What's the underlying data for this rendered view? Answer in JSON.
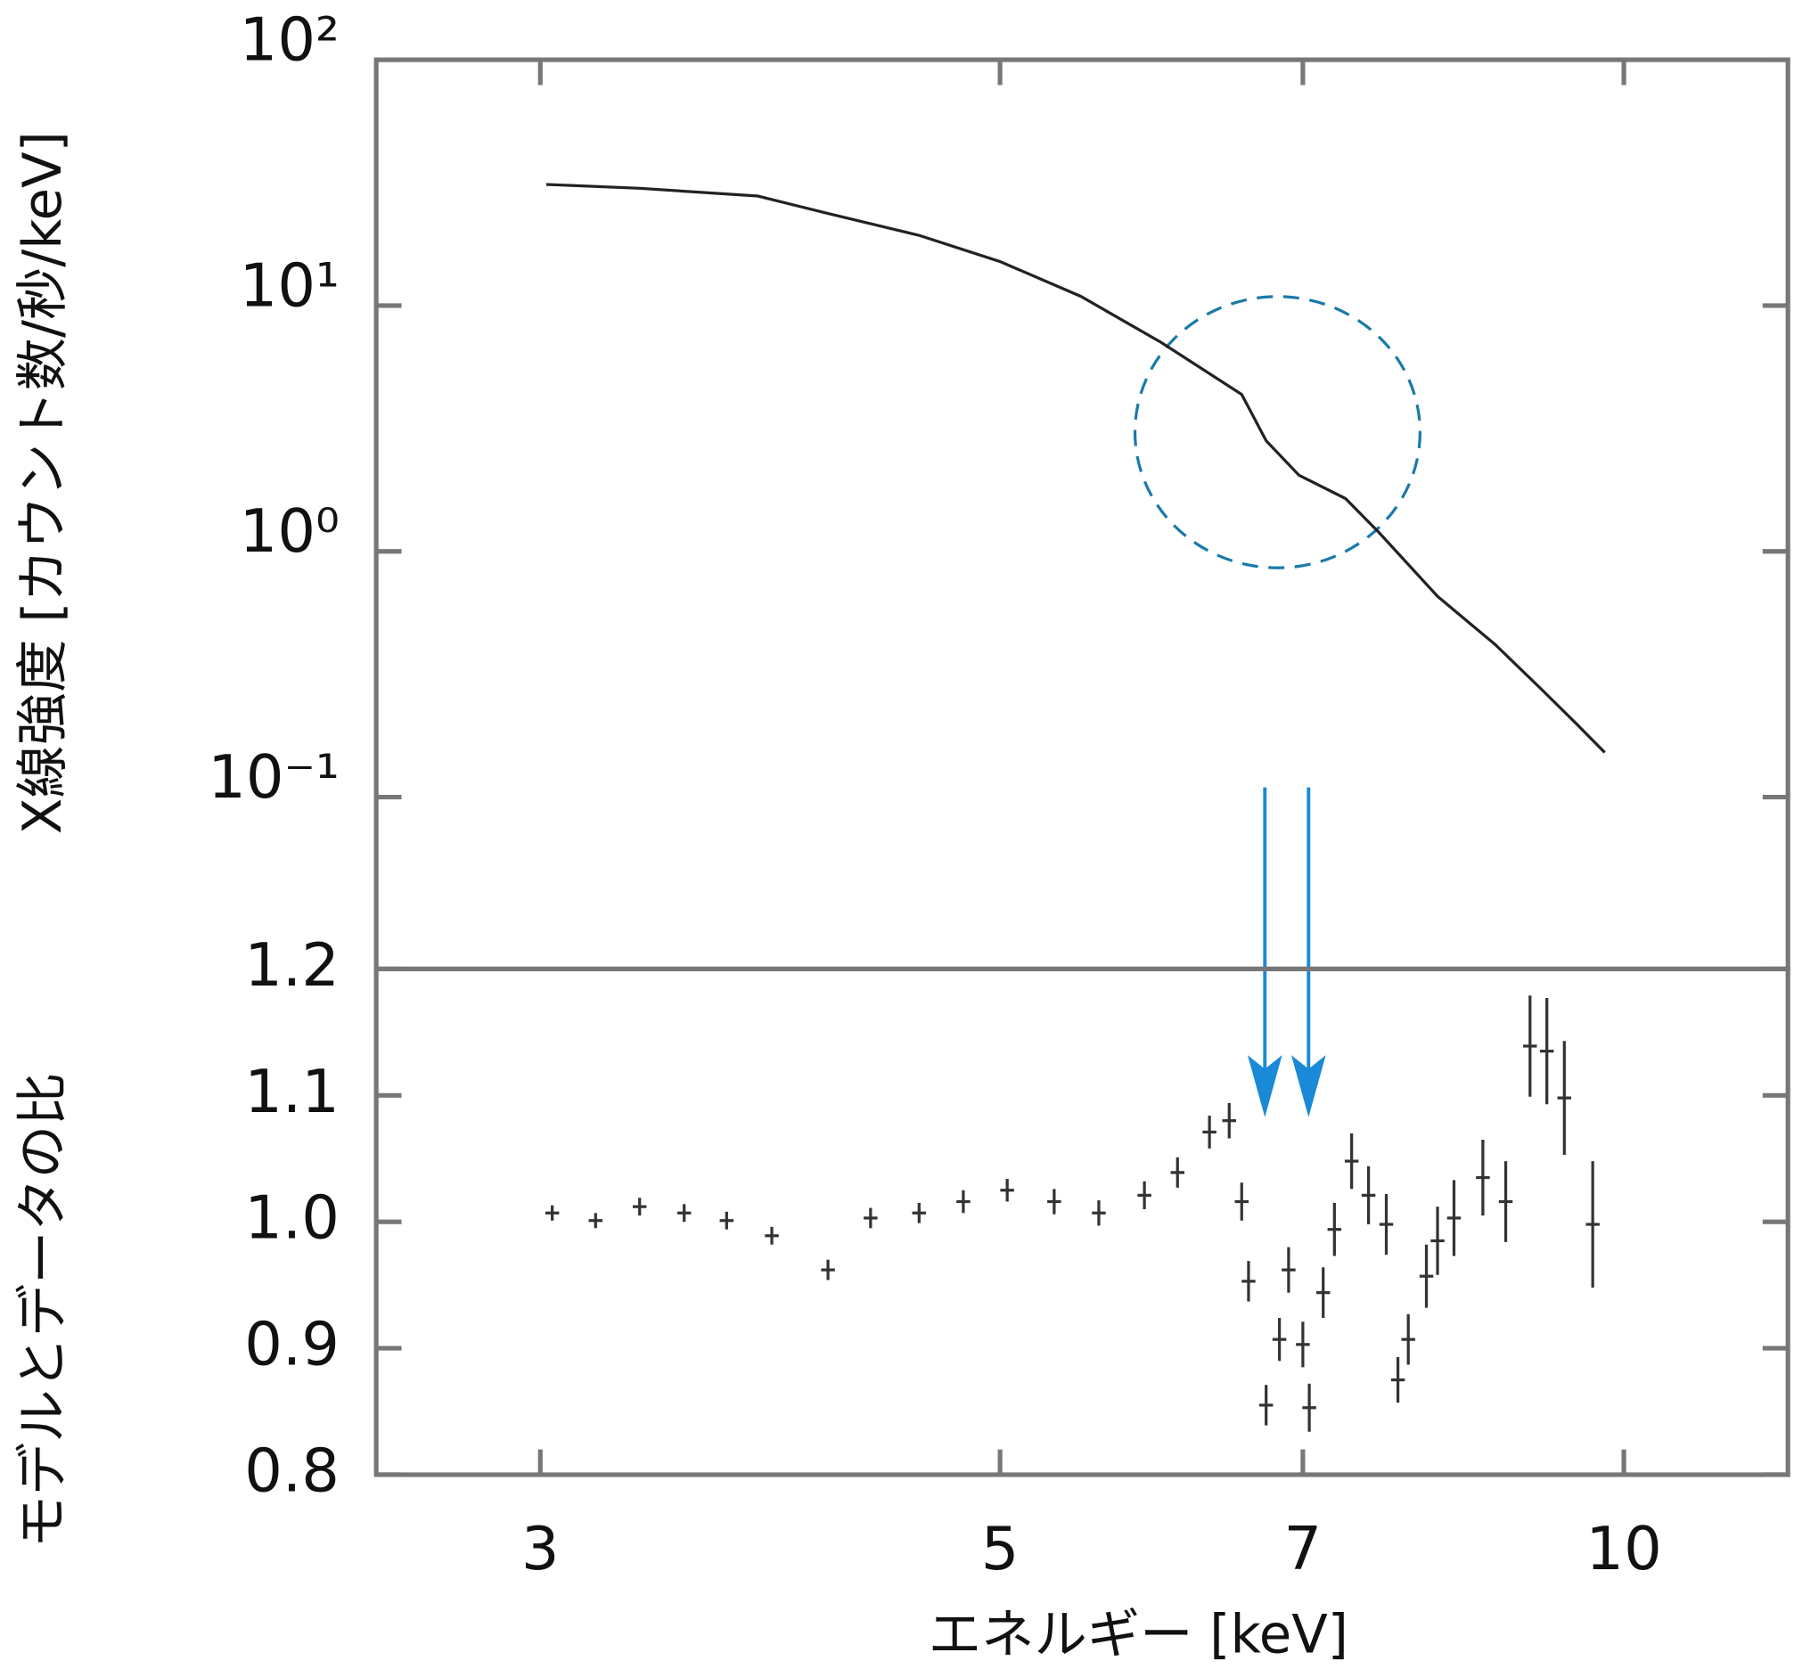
{
  "chart_data": [
    {
      "type": "line",
      "ylabel": "X線強度 [カウント数/秒/keV]",
      "log_x": true,
      "log_y": true,
      "color": "#222222",
      "x": [
        3.02,
        3.35,
        3.82,
        4.13,
        4.57,
        5.0,
        5.47,
        5.98,
        6.54,
        6.72,
        6.97,
        7.34,
        7.62,
        8.13,
        8.67,
        9.12,
        9.48,
        9.79
      ],
      "values": [
        31.1,
        30.0,
        27.9,
        23.7,
        19.3,
        15.1,
        10.9,
        7.08,
        4.35,
        2.82,
        2.04,
        1.64,
        1.19,
        0.656,
        0.417,
        0.276,
        0.2,
        0.152
      ],
      "xlim": [
        2.5,
        12
      ],
      "ylim": [
        0.02,
        100
      ],
      "yticks": [
        {
          "value": 100,
          "label": "10²"
        },
        {
          "value": 10,
          "label": "10¹"
        },
        {
          "value": 1,
          "label": "10⁰"
        },
        {
          "value": 0.1,
          "label": "10⁻¹"
        }
      ]
    },
    {
      "type": "errorbar",
      "ylabel": "モデルとデータの比",
      "xlabel": "エネルギー [keV]",
      "log_x": true,
      "color": "#333333",
      "x": [
        3.04,
        3.19,
        3.35,
        3.52,
        3.69,
        3.88,
        4.13,
        4.33,
        4.57,
        4.8,
        5.04,
        5.31,
        5.58,
        5.87,
        6.09,
        6.31,
        6.45,
        6.54,
        6.59,
        6.72,
        6.82,
        6.89,
        7.0,
        7.05,
        7.16,
        7.25,
        7.39,
        7.53,
        7.68,
        7.78,
        7.87,
        8.03,
        8.13,
        8.28,
        8.55,
        8.77,
        9.01,
        9.18,
        9.36,
        9.66
      ],
      "values": [
        1.007,
        1.001,
        1.012,
        1.007,
        1.001,
        0.989,
        0.962,
        1.003,
        1.007,
        1.016,
        1.025,
        1.016,
        1.007,
        1.021,
        1.039,
        1.071,
        1.08,
        1.016,
        0.953,
        0.855,
        0.907,
        0.962,
        0.903,
        0.853,
        0.944,
        0.994,
        1.048,
        1.021,
        0.998,
        0.875,
        0.907,
        0.957,
        0.985,
        1.003,
        1.035,
        1.016,
        1.139,
        1.135,
        1.098,
        0.998
      ],
      "errors": [
        0.006,
        0.006,
        0.007,
        0.007,
        0.007,
        0.007,
        0.008,
        0.008,
        0.008,
        0.009,
        0.009,
        0.01,
        0.01,
        0.011,
        0.012,
        0.013,
        0.014,
        0.015,
        0.016,
        0.016,
        0.017,
        0.018,
        0.018,
        0.019,
        0.02,
        0.021,
        0.022,
        0.023,
        0.024,
        0.018,
        0.02,
        0.025,
        0.027,
        0.03,
        0.03,
        0.032,
        0.04,
        0.042,
        0.045,
        0.05
      ],
      "xlim": [
        2.5,
        12
      ],
      "ylim": [
        0.8,
        1.2
      ],
      "xticks": [
        3,
        5,
        7,
        10
      ],
      "yticks": [
        0.8,
        0.9,
        {
          "value": 1,
          "label": "1.0"
        },
        1.1,
        1.2
      ]
    }
  ]
}
